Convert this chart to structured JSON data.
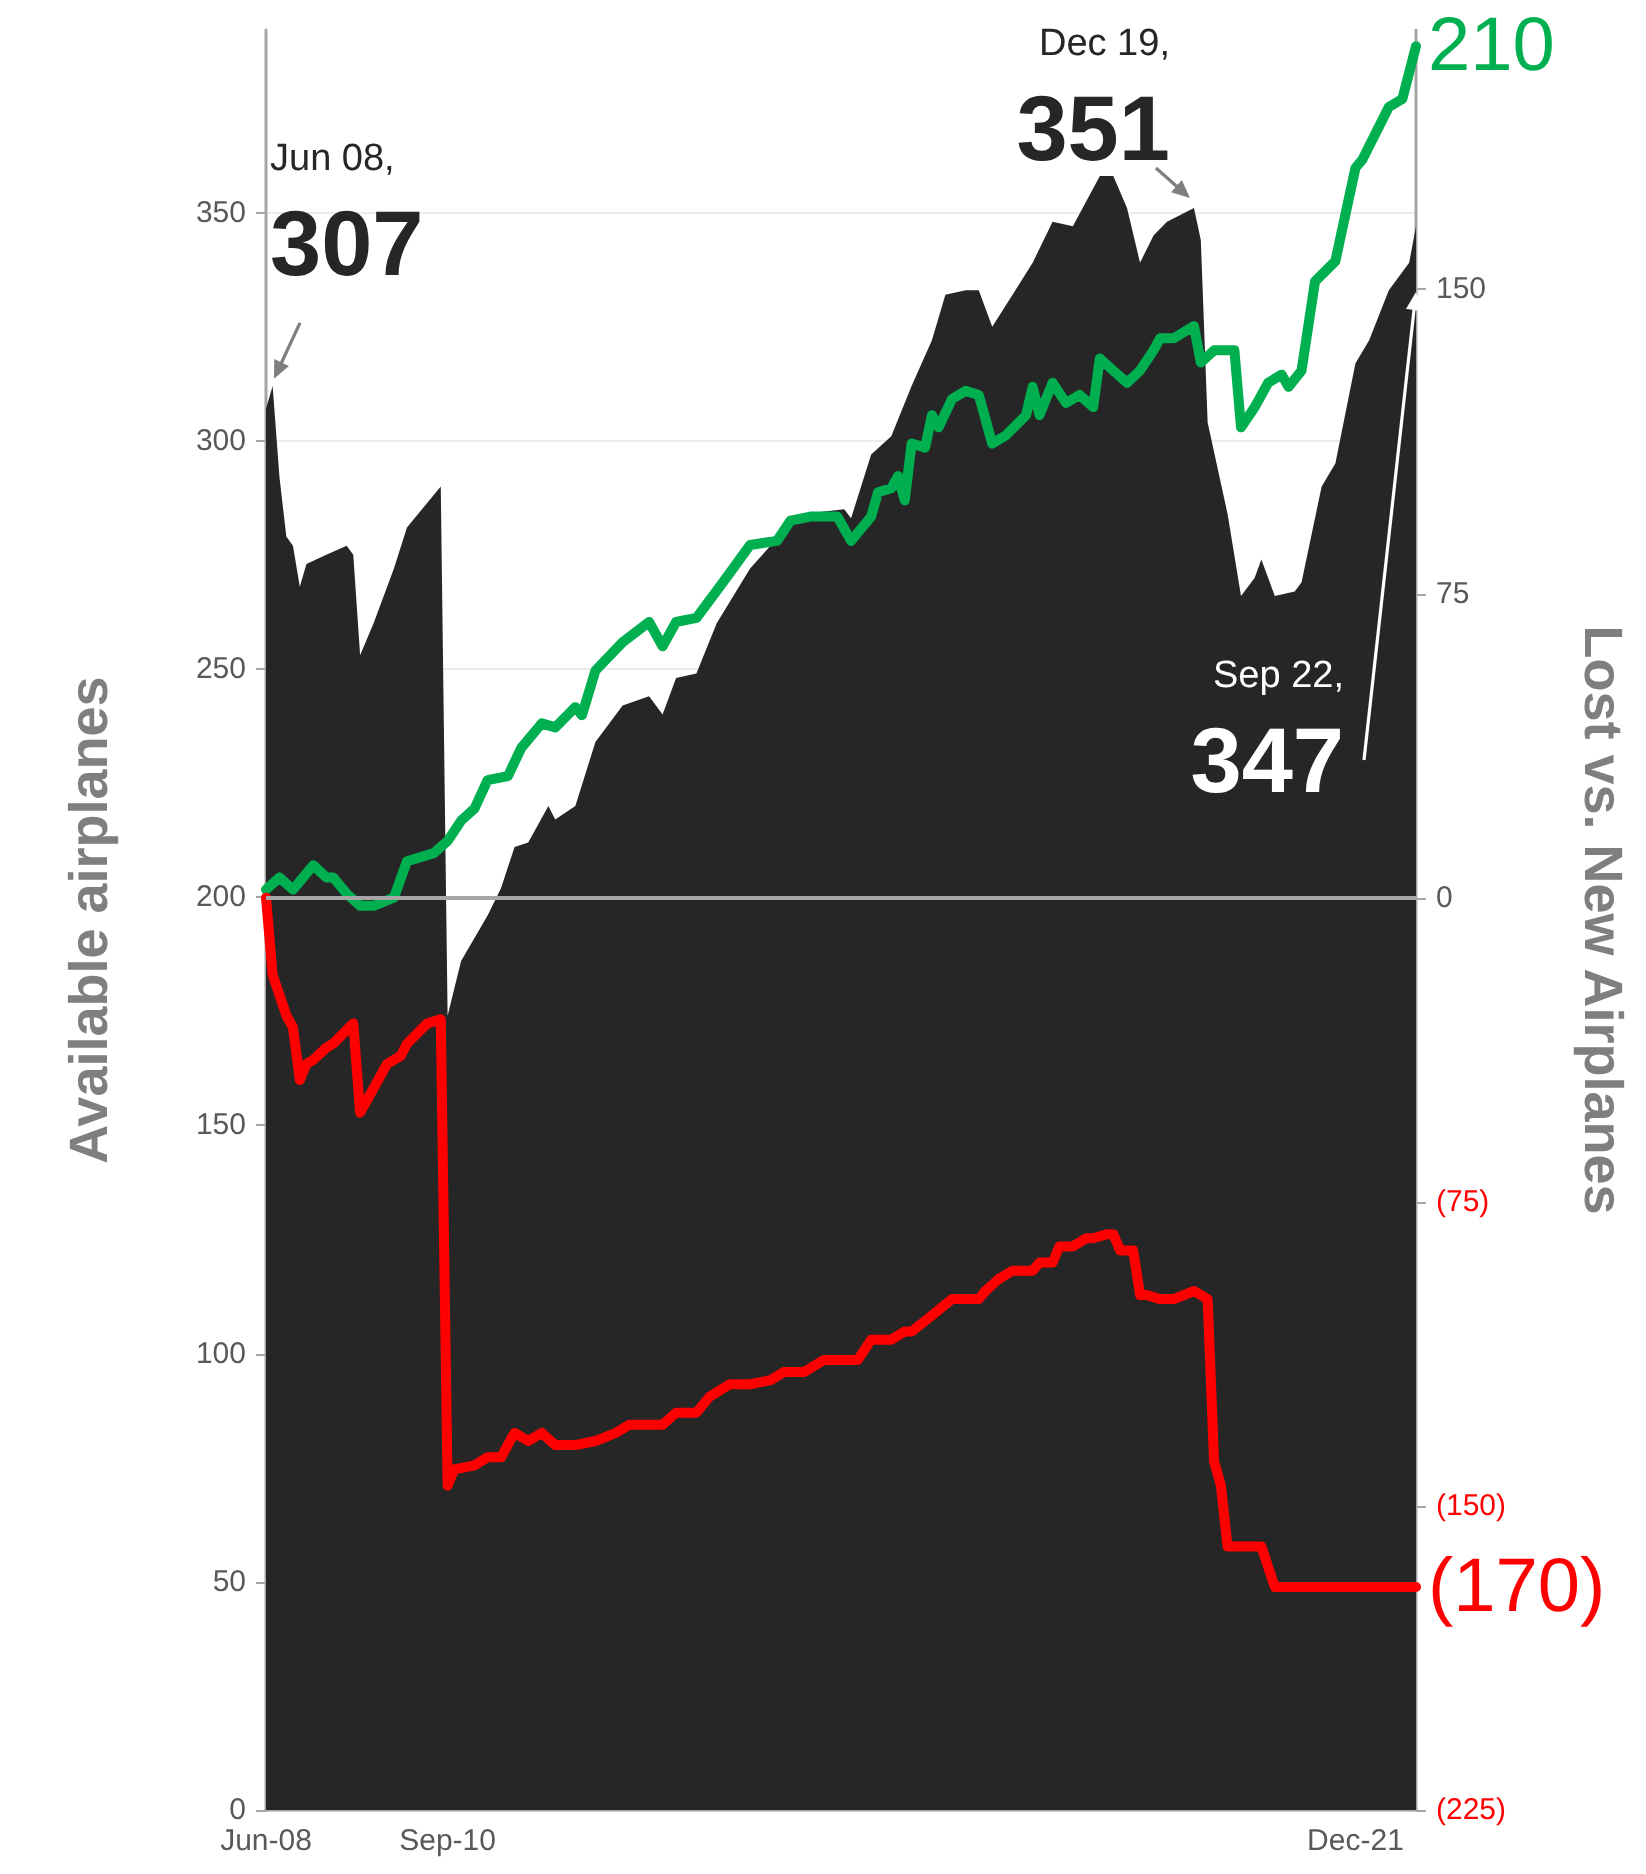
{
  "chart_data": {
    "type": "area",
    "ylabel": "Available airplanes",
    "y2label": "Lost vs. New Airplanes",
    "xlim": [
      "2008-06",
      "2022-09"
    ],
    "xticks": [
      {
        "value": "2008-06",
        "label": "Jun-08"
      },
      {
        "value": "2010-09",
        "label": "Sep-10"
      },
      {
        "value": "2021-12",
        "label": "Dec-21"
      }
    ],
    "ylim": [
      0,
      390
    ],
    "yticks": [
      0,
      50,
      100,
      150,
      200,
      250,
      300,
      350
    ],
    "y2lim": [
      -225,
      214
    ],
    "y2ticks": [
      {
        "value": -225,
        "label": "(225)"
      },
      {
        "value": -150,
        "label": "(150)"
      },
      {
        "value": -75,
        "label": "(75)"
      },
      0,
      75,
      150
    ],
    "grid": "y",
    "marker": "none",
    "line_style": "solid",
    "ref_lines": [
      {
        "axis": "y2",
        "value": 0,
        "color": "#a6a6a6"
      }
    ],
    "annotations": [
      {
        "text": "Jun 08,\n307",
        "x": "2008-06",
        "y": 307
      },
      {
        "text": "Dec 19,\n351",
        "x": "2019-12",
        "y": 351
      },
      "Sep 22,\n347"
    ],
    "series": [
      {
        "color": "#262626",
        "x": [
          "2008-06",
          "2008-07",
          "2008-08",
          "2008-09",
          "2008-10",
          "2008-11",
          "2008-12",
          "2009-03",
          "2009-06",
          "2009-07",
          "2009-08",
          "2009-10",
          "2010-01",
          "2010-03",
          "2010-08",
          "2010-09",
          "2010-11",
          "2011-03",
          "2011-05",
          "2011-07",
          "2011-09",
          "2011-12",
          "2012-01",
          "2012-04",
          "2012-07",
          "2012-11",
          "2013-03",
          "2013-05",
          "2013-07",
          "2013-10",
          "2014-01",
          "2014-06",
          "2014-09",
          "2015-02",
          "2015-08",
          "2015-09",
          "2015-12",
          "2016-03",
          "2016-06",
          "2016-09",
          "2016-11",
          "2017-02",
          "2017-04",
          "2017-06",
          "2017-09",
          "2017-12",
          "2018-03",
          "2018-06",
          "2018-10",
          "2018-12",
          "2019-02",
          "2019-04",
          "2019-06",
          "2019-08",
          "2019-12",
          "2020-01",
          "2020-02",
          "2020-05",
          "2020-07",
          "2020-09",
          "2020-10",
          "2020-12",
          "2021-03",
          "2021-04",
          "2021-07",
          "2021-09",
          "2021-12",
          "2022-02",
          "2022-05",
          "2022-08",
          "2022-09"
        ],
        "values": [
          307,
          312,
          292,
          279,
          277,
          268,
          273,
          275,
          277,
          275,
          253,
          260,
          272,
          281,
          290,
          174,
          186,
          196,
          202,
          211,
          212,
          220,
          217,
          220,
          234,
          242,
          244,
          240,
          248,
          249,
          260,
          272,
          277,
          284,
          285,
          283,
          297,
          301,
          312,
          322,
          332,
          333,
          333,
          325,
          332,
          339,
          348,
          347,
          358,
          358,
          351,
          339,
          345,
          348,
          351,
          344,
          304,
          284,
          266,
          270,
          274,
          266,
          267,
          269,
          290,
          295,
          317,
          322,
          333,
          339,
          347
        ]
      },
      {
        "type": "line",
        "axis": "y2",
        "color": "#00b050",
        "x": [
          "2008-06",
          "2008-08",
          "2008-10",
          "2009-01",
          "2009-03",
          "2009-04",
          "2009-06",
          "2009-08",
          "2009-10",
          "2010-01",
          "2010-03",
          "2010-07",
          "2010-09",
          "2010-11",
          "2011-01",
          "2011-03",
          "2011-06",
          "2011-08",
          "2011-11",
          "2012-01",
          "2012-04",
          "2012-05",
          "2012-07",
          "2012-11",
          "2013-03",
          "2013-05",
          "2013-07",
          "2013-10",
          "2014-02",
          "2014-06",
          "2014-10",
          "2014-12",
          "2015-03",
          "2015-07",
          "2015-09",
          "2015-12",
          "2016-01",
          "2016-03",
          "2016-04",
          "2016-05",
          "2016-06",
          "2016-08",
          "2016-09",
          "2016-10",
          "2016-12",
          "2017-02",
          "2017-04",
          "2017-06",
          "2017-08",
          "2017-11",
          "2017-12",
          "2018-01",
          "2018-03",
          "2018-05",
          "2018-07",
          "2018-09",
          "2018-10",
          "2018-12",
          "2019-02",
          "2019-04",
          "2019-06",
          "2019-07",
          "2019-09",
          "2019-12",
          "2020-01",
          "2020-03",
          "2020-06",
          "2020-07",
          "2020-09",
          "2020-11",
          "2021-01",
          "2021-02",
          "2021-04",
          "2021-06",
          "2021-09",
          "2021-12",
          "2022-01",
          "2022-05",
          "2022-07",
          "2022-09"
        ],
        "values": [
          2,
          5,
          2,
          8,
          5,
          5,
          1,
          -2,
          -2,
          0,
          9,
          11,
          14,
          19,
          22,
          29,
          30,
          37,
          43,
          42,
          47,
          45,
          56,
          63,
          68,
          62,
          68,
          69,
          78,
          87,
          88,
          93,
          94,
          94,
          88,
          94,
          100,
          101,
          104,
          98,
          112,
          111,
          119,
          116,
          123,
          125,
          124,
          112,
          114,
          119,
          126,
          119,
          127,
          122,
          124,
          121,
          133,
          130,
          127,
          130,
          135,
          138,
          138,
          141,
          132,
          135,
          135,
          116,
          121,
          127,
          129,
          126,
          130,
          152,
          157,
          180,
          182,
          195,
          197,
          210
        ],
        "value_labels": [
          null,
          null,
          null,
          null,
          null,
          null,
          null,
          null,
          null,
          null,
          null,
          null,
          null,
          null,
          null,
          null,
          null,
          null,
          null,
          null,
          null,
          null,
          null,
          null,
          null,
          null,
          null,
          null,
          null,
          null,
          null,
          null,
          null,
          null,
          null,
          null,
          null,
          null,
          null,
          null,
          null,
          null,
          null,
          null,
          null,
          null,
          null,
          null,
          null,
          null,
          null,
          null,
          null,
          null,
          null,
          null,
          null,
          null,
          null,
          null,
          null,
          null,
          null,
          null,
          null,
          null,
          null,
          null,
          null,
          null,
          null,
          null,
          null,
          null,
          null,
          null,
          null,
          null,
          null,
          "210"
        ]
      },
      {
        "type": "line",
        "axis": "y2",
        "color": "#ff0000",
        "x": [
          "2008-06",
          "2008-07",
          "2008-09",
          "2008-10",
          "2008-11",
          "2008-12",
          "2009-01",
          "2009-03",
          "2009-04",
          "2009-07",
          "2009-08",
          "2009-10",
          "2009-12",
          "2010-02",
          "2010-03",
          "2010-06",
          "2010-08",
          "2010-09",
          "2010-10",
          "2011-01",
          "2011-03",
          "2011-05",
          "2011-07",
          "2011-09",
          "2011-11",
          "2012-01",
          "2012-04",
          "2012-07",
          "2012-10",
          "2012-12",
          "2013-05",
          "2013-07",
          "2013-10",
          "2013-12",
          "2014-03",
          "2014-06",
          "2014-09",
          "2014-11",
          "2015-02",
          "2015-05",
          "2015-10",
          "2015-12",
          "2016-03",
          "2016-05",
          "2016-06",
          "2016-09",
          "2016-12",
          "2017-04",
          "2017-05",
          "2017-07",
          "2017-09",
          "2017-12",
          "2018-01",
          "2018-03",
          "2018-04",
          "2018-06",
          "2018-08",
          "2018-09",
          "2018-11",
          "2018-12",
          "2019-01",
          "2019-03",
          "2019-04",
          "2019-05",
          "2019-07",
          "2019-09",
          "2019-12",
          "2020-02",
          "2020-03",
          "2020-04",
          "2020-05",
          "2020-10",
          "2020-12",
          "2022-09"
        ],
        "values": [
          0,
          -19,
          -29,
          -32,
          -45,
          -41,
          -40,
          -37,
          -36,
          -31,
          -53,
          -47,
          -41,
          -39,
          -36,
          -31,
          -30,
          -145,
          -141,
          -140,
          -138,
          -138,
          -132,
          -134,
          -132,
          -135,
          -135,
          -134,
          -132,
          -130,
          -130,
          -127,
          -127,
          -123,
          -120,
          -120,
          -119,
          -117,
          -117,
          -114,
          -114,
          -109,
          -109,
          -107,
          -107,
          -103,
          -99,
          -99,
          -97,
          -94,
          -92,
          -92,
          -90,
          -90,
          -86,
          -86,
          -84,
          -84,
          -83,
          -83,
          -87,
          -87,
          -98,
          -98,
          -99,
          -99,
          -97,
          -99,
          -139,
          -145,
          -160,
          -160,
          -170,
          -170
        ],
        "value_labels": [
          null,
          null,
          null,
          null,
          null,
          null,
          null,
          null,
          null,
          null,
          null,
          null,
          null,
          null,
          null,
          null,
          null,
          null,
          null,
          null,
          null,
          null,
          null,
          null,
          null,
          null,
          null,
          null,
          null,
          null,
          null,
          null,
          null,
          null,
          null,
          null,
          null,
          null,
          null,
          null,
          null,
          null,
          null,
          null,
          null,
          null,
          null,
          null,
          null,
          null,
          null,
          null,
          null,
          null,
          null,
          null,
          null,
          null,
          null,
          null,
          null,
          null,
          null,
          null,
          null,
          null,
          null,
          null,
          null,
          null,
          null,
          null,
          null,
          "(170)"
        ]
      }
    ]
  }
}
